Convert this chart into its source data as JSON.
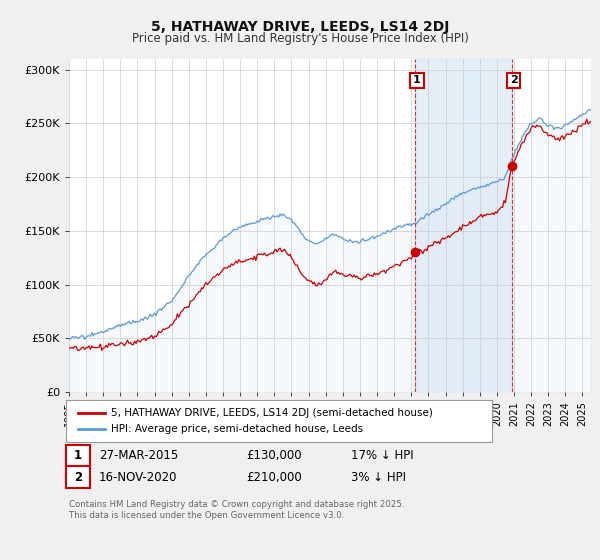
{
  "title": "5, HATHAWAY DRIVE, LEEDS, LS14 2DJ",
  "subtitle": "Price paid vs. HM Land Registry's House Price Index (HPI)",
  "ylabel_ticks": [
    "£0",
    "£50K",
    "£100K",
    "£150K",
    "£200K",
    "£250K",
    "£300K"
  ],
  "ytick_values": [
    0,
    50000,
    100000,
    150000,
    200000,
    250000,
    300000
  ],
  "ylim": [
    0,
    310000
  ],
  "xlim_start": 1995.0,
  "xlim_end": 2025.5,
  "hpi_color": "#5b9bd5",
  "hpi_fill_color": "#d9e8f5",
  "price_color": "#cc0000",
  "sale1_date": 2015.23,
  "sale1_price": 130000,
  "sale2_date": 2020.88,
  "sale2_price": 210000,
  "sale1_label": "27-MAR-2015",
  "sale1_price_label": "£130,000",
  "sale1_hpi_label": "17% ↓ HPI",
  "sale2_label": "16-NOV-2020",
  "sale2_price_label": "£210,000",
  "sale2_hpi_label": "3% ↓ HPI",
  "legend_line1": "5, HATHAWAY DRIVE, LEEDS, LS14 2DJ (semi-detached house)",
  "legend_line2": "HPI: Average price, semi-detached house, Leeds",
  "footnote": "Contains HM Land Registry data © Crown copyright and database right 2025.\nThis data is licensed under the Open Government Licence v3.0.",
  "background_color": "#f0f0f0",
  "plot_bg_color": "#ffffff"
}
